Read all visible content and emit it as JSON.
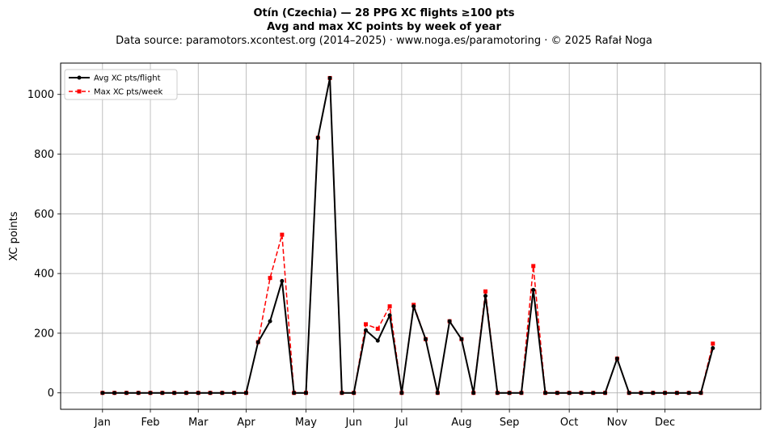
{
  "header": {
    "title_line1": "Otín (Czechia)  —  28 PPG XC flights ≥100 pts",
    "title_line2": "Avg and max XC points by week of year",
    "subtitle": "Data source: paramotors.xcontest.org (2014–2025)  ·  www.noga.es/paramotoring  ·  © 2025 Rafał Noga"
  },
  "chart_data": {
    "type": "line",
    "title": "Otín (Czechia)  —  28 PPG XC flights ≥100 pts\nAvg and max XC points by week of year",
    "xlabel": "",
    "ylabel": "XC points",
    "x": [
      1,
      2,
      3,
      4,
      5,
      6,
      7,
      8,
      9,
      10,
      11,
      12,
      13,
      14,
      15,
      16,
      17,
      18,
      19,
      20,
      21,
      22,
      23,
      24,
      25,
      26,
      27,
      28,
      29,
      30,
      31,
      32,
      33,
      34,
      35,
      36,
      37,
      38,
      39,
      40,
      41,
      42,
      43,
      44,
      45,
      46,
      47,
      48,
      49,
      50,
      51,
      52
    ],
    "xlim": [
      -2.5,
      56
    ],
    "ylim": [
      -55,
      1105
    ],
    "xticks": [
      {
        "x": 1,
        "label": "Jan"
      },
      {
        "x": 5,
        "label": "Feb"
      },
      {
        "x": 9,
        "label": "Mar"
      },
      {
        "x": 13,
        "label": "Apr"
      },
      {
        "x": 18,
        "label": "May"
      },
      {
        "x": 22,
        "label": "Jun"
      },
      {
        "x": 26,
        "label": "Jul"
      },
      {
        "x": 31,
        "label": "Aug"
      },
      {
        "x": 35,
        "label": "Sep"
      },
      {
        "x": 40,
        "label": "Oct"
      },
      {
        "x": 44,
        "label": "Nov"
      },
      {
        "x": 48,
        "label": "Dec"
      }
    ],
    "yticks": [
      0,
      200,
      400,
      600,
      800,
      1000
    ],
    "grid": true,
    "legend_position": "top-left",
    "series": [
      {
        "name": "Avg XC pts/flight",
        "color": "#000000",
        "style": "solid",
        "marker": "circle",
        "values": [
          0,
          0,
          0,
          0,
          0,
          0,
          0,
          0,
          0,
          0,
          0,
          0,
          0,
          170,
          240,
          375,
          0,
          0,
          855,
          1055,
          0,
          0,
          210,
          175,
          260,
          0,
          290,
          180,
          0,
          240,
          180,
          0,
          325,
          0,
          0,
          0,
          345,
          0,
          0,
          0,
          0,
          0,
          0,
          115,
          0,
          0,
          0,
          0,
          0,
          0,
          0,
          150
        ]
      },
      {
        "name": "Max XC pts/week",
        "color": "#ff0000",
        "style": "dashed",
        "marker": "square",
        "values": [
          0,
          0,
          0,
          0,
          0,
          0,
          0,
          0,
          0,
          0,
          0,
          0,
          0,
          170,
          385,
          530,
          0,
          0,
          855,
          1055,
          0,
          0,
          230,
          215,
          290,
          0,
          295,
          180,
          0,
          240,
          180,
          0,
          340,
          0,
          0,
          0,
          425,
          0,
          0,
          0,
          0,
          0,
          0,
          115,
          0,
          0,
          0,
          0,
          0,
          0,
          0,
          165
        ]
      }
    ]
  }
}
